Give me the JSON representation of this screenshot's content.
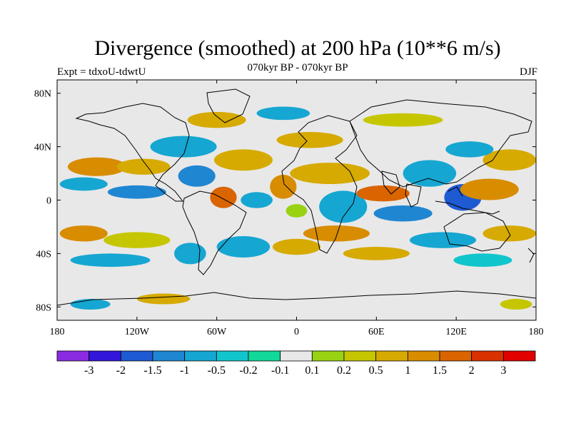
{
  "title": "Divergence (smoothed) at 200 hPa (10**6 m/s)",
  "subtitle": "070kyr BP - 070kyr BP",
  "experiment": "Expt = tdxoU-tdwtU",
  "season": "DJF",
  "map": {
    "projection": "cylindrical-equidistant",
    "lon_range": [
      -180,
      180
    ],
    "lat_range": [
      -90,
      90
    ],
    "background_color": "#e8e8e8",
    "coastline_color": "#000000",
    "lon_ticks": [
      {
        "value": -180,
        "label": "180"
      },
      {
        "value": -120,
        "label": "120W"
      },
      {
        "value": -60,
        "label": "60W"
      },
      {
        "value": 0,
        "label": "0"
      },
      {
        "value": 60,
        "label": "60E"
      },
      {
        "value": 120,
        "label": "120E"
      },
      {
        "value": 180,
        "label": "180"
      }
    ],
    "lat_ticks": [
      {
        "value": 80,
        "label": "80N"
      },
      {
        "value": 40,
        "label": "40N"
      },
      {
        "value": 0,
        "label": "0"
      },
      {
        "value": -40,
        "label": "40S"
      },
      {
        "value": -80,
        "label": "80S"
      }
    ]
  },
  "colorbar": {
    "colors": [
      "#8a2be2",
      "#3216d9",
      "#1e5ad2",
      "#1f86d2",
      "#16a6d2",
      "#10c6cc",
      "#12d89a",
      "#e8e8e8",
      "#98d212",
      "#c6c600",
      "#d6aa00",
      "#d88c00",
      "#da6400",
      "#d83200",
      "#e00000"
    ],
    "labels": [
      "-3",
      "-2",
      "-1.5",
      "-1",
      "-0.5",
      "-0.2",
      "-0.1",
      "0.1",
      "0.2",
      "0.5",
      "1",
      "1.5",
      "2",
      "3"
    ]
  },
  "fields": [
    {
      "lon": -150,
      "lat": 25,
      "rx": 22,
      "ry": 7,
      "level": "1"
    },
    {
      "lon": -115,
      "lat": 25,
      "rx": 20,
      "ry": 6,
      "level": "0.5"
    },
    {
      "lon": -160,
      "lat": 12,
      "rx": 18,
      "ry": 5,
      "level": "-0.5"
    },
    {
      "lon": -120,
      "lat": 6,
      "rx": 22,
      "ry": 5,
      "level": "-1"
    },
    {
      "lon": -75,
      "lat": 18,
      "rx": 14,
      "ry": 8,
      "level": "-1"
    },
    {
      "lon": -85,
      "lat": 40,
      "rx": 25,
      "ry": 8,
      "level": "-0.5"
    },
    {
      "lon": -40,
      "lat": 30,
      "rx": 22,
      "ry": 8,
      "level": "0.5"
    },
    {
      "lon": -55,
      "lat": 2,
      "rx": 10,
      "ry": 8,
      "level": "1.5"
    },
    {
      "lon": -30,
      "lat": 0,
      "rx": 12,
      "ry": 6,
      "level": "-0.5"
    },
    {
      "lon": -10,
      "lat": 10,
      "rx": 10,
      "ry": 9,
      "level": "1"
    },
    {
      "lon": 0,
      "lat": -8,
      "rx": 8,
      "ry": 5,
      "level": "0.1"
    },
    {
      "lon": 25,
      "lat": 20,
      "rx": 30,
      "ry": 8,
      "level": "0.5"
    },
    {
      "lon": 10,
      "lat": 45,
      "rx": 25,
      "ry": 6,
      "level": "0.5"
    },
    {
      "lon": 35,
      "lat": -5,
      "rx": 18,
      "ry": 12,
      "level": "-0.5"
    },
    {
      "lon": 30,
      "lat": -25,
      "rx": 25,
      "ry": 6,
      "level": "1"
    },
    {
      "lon": 65,
      "lat": 5,
      "rx": 20,
      "ry": 6,
      "level": "1.5"
    },
    {
      "lon": 80,
      "lat": -10,
      "rx": 22,
      "ry": 6,
      "level": "-1"
    },
    {
      "lon": 100,
      "lat": 20,
      "rx": 20,
      "ry": 10,
      "level": "-0.5"
    },
    {
      "lon": 125,
      "lat": 2,
      "rx": 14,
      "ry": 10,
      "level": "-1.5"
    },
    {
      "lon": 145,
      "lat": 8,
      "rx": 22,
      "ry": 8,
      "level": "1"
    },
    {
      "lon": 160,
      "lat": 30,
      "rx": 20,
      "ry": 8,
      "level": "0.5"
    },
    {
      "lon": 130,
      "lat": 38,
      "rx": 18,
      "ry": 6,
      "level": "-0.5"
    },
    {
      "lon": 110,
      "lat": -30,
      "rx": 25,
      "ry": 6,
      "level": "-0.5"
    },
    {
      "lon": 160,
      "lat": -25,
      "rx": 20,
      "ry": 6,
      "level": "0.5"
    },
    {
      "lon": -160,
      "lat": -25,
      "rx": 18,
      "ry": 6,
      "level": "1"
    },
    {
      "lon": -120,
      "lat": -30,
      "rx": 25,
      "ry": 6,
      "level": "0.2"
    },
    {
      "lon": -140,
      "lat": -45,
      "rx": 30,
      "ry": 5,
      "level": "-0.5"
    },
    {
      "lon": -80,
      "lat": -40,
      "rx": 12,
      "ry": 8,
      "level": "-0.5"
    },
    {
      "lon": -40,
      "lat": -35,
      "rx": 20,
      "ry": 8,
      "level": "-0.5"
    },
    {
      "lon": 0,
      "lat": -35,
      "rx": 18,
      "ry": 6,
      "level": "0.5"
    },
    {
      "lon": 60,
      "lat": -40,
      "rx": 25,
      "ry": 5,
      "level": "0.5"
    },
    {
      "lon": 140,
      "lat": -45,
      "rx": 22,
      "ry": 5,
      "level": "-0.2"
    },
    {
      "lon": -60,
      "lat": 60,
      "rx": 22,
      "ry": 6,
      "level": "0.5"
    },
    {
      "lon": -10,
      "lat": 65,
      "rx": 20,
      "ry": 5,
      "level": "-0.5"
    },
    {
      "lon": 80,
      "lat": 60,
      "rx": 30,
      "ry": 5,
      "level": "0.2"
    },
    {
      "lon": -155,
      "lat": -78,
      "rx": 15,
      "ry": 4,
      "level": "-0.5"
    },
    {
      "lon": -100,
      "lat": -74,
      "rx": 20,
      "ry": 4,
      "level": "0.5"
    },
    {
      "lon": 165,
      "lat": -78,
      "rx": 12,
      "ry": 4,
      "level": "0.2"
    }
  ]
}
